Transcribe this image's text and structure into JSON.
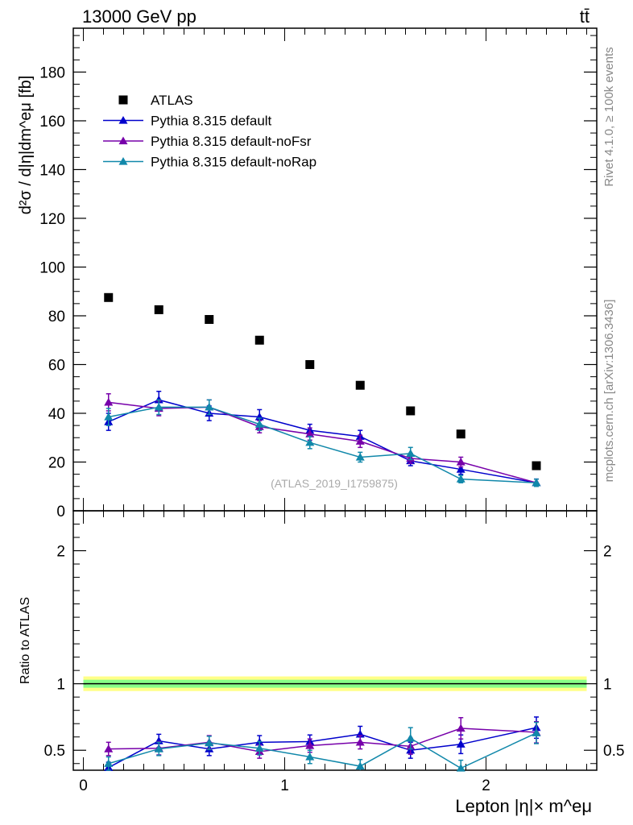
{
  "header": {
    "energy_label": "13000 GeV pp",
    "process_label": "tt̄"
  },
  "side_text": {
    "rivet": "Rivet 4.1.0, ≥ 100k events",
    "mcplots": "mcplots.cern.ch [arXiv:1306.3436]"
  },
  "analysis_label": "(ATLAS_2019_I1759875)",
  "colors": {
    "atlas": "#000000",
    "default": "#0000cc",
    "noFsr": "#7700aa",
    "noRap": "#1188aa",
    "band_outer": "#ffff88",
    "band_inner": "#88ff88"
  },
  "chart_data": [
    {
      "type": "scatter",
      "panel": "main",
      "ylabel": "d²σ / d|η|dm^eμ [fb]",
      "ylim": [
        0,
        198
      ],
      "xlim": [
        -0.05,
        2.55
      ],
      "yticks": [
        0,
        20,
        40,
        60,
        80,
        100,
        120,
        140,
        160,
        180
      ],
      "x": [
        0.125,
        0.375,
        0.625,
        0.875,
        1.125,
        1.375,
        1.625,
        1.875,
        2.25
      ],
      "series": [
        {
          "name": "ATLAS",
          "key": "atlas",
          "marker": "square",
          "values": [
            87.5,
            82.5,
            78.5,
            70.0,
            60.0,
            51.5,
            41.0,
            31.5,
            18.5
          ]
        },
        {
          "name": "Pythia 8.315 default",
          "key": "default",
          "marker": "triangle",
          "values": [
            36.5,
            45.5,
            40.0,
            38.5,
            33.0,
            30.5,
            20.5,
            17.0,
            11.5
          ],
          "errors": [
            3.5,
            3.5,
            3.0,
            3.0,
            2.5,
            2.5,
            2.0,
            2.0,
            1.5
          ]
        },
        {
          "name": "Pythia 8.315 default-noFsr",
          "key": "noFsr",
          "marker": "triangle",
          "values": [
            44.5,
            42.0,
            42.5,
            34.5,
            31.5,
            28.5,
            21.5,
            20.0,
            11.5
          ],
          "errors": [
            3.5,
            3.0,
            3.0,
            2.5,
            2.5,
            2.5,
            2.0,
            2.0,
            1.5
          ]
        },
        {
          "name": "Pythia 8.315 default-noRap",
          "key": "noRap",
          "marker": "triangle",
          "values": [
            38.5,
            42.5,
            42.5,
            35.5,
            28.0,
            22.0,
            23.5,
            13.0,
            11.5
          ],
          "errors": [
            3.5,
            3.0,
            3.0,
            2.5,
            2.5,
            2.0,
            2.5,
            1.5,
            1.5
          ]
        }
      ]
    },
    {
      "type": "line",
      "panel": "ratio",
      "ylabel": "Ratio to ATLAS",
      "xlabel": "Lepton |η|× m^eμ",
      "ylim": [
        0.35,
        2.3
      ],
      "xlim": [
        -0.05,
        2.55
      ],
      "yticks": [
        0.5,
        1,
        2
      ],
      "xticks": [
        0,
        1,
        2
      ],
      "x": [
        0.125,
        0.375,
        0.625,
        0.875,
        1.125,
        1.375,
        1.625,
        1.875,
        2.25
      ],
      "band": {
        "center": 1.0,
        "outer": 0.055,
        "inner": 0.03
      },
      "series": [
        {
          "name": "Pythia 8.315 default",
          "key": "default",
          "values": [
            0.37,
            0.57,
            0.51,
            0.56,
            0.565,
            0.62,
            0.5,
            0.545,
            0.67
          ],
          "errors": [
            0.04,
            0.05,
            0.05,
            0.05,
            0.05,
            0.06,
            0.06,
            0.07,
            0.08
          ]
        },
        {
          "name": "Pythia 8.315 default-noFsr",
          "key": "noFsr",
          "values": [
            0.51,
            0.515,
            0.56,
            0.49,
            0.535,
            0.56,
            0.53,
            0.665,
            0.635
          ],
          "errors": [
            0.05,
            0.05,
            0.05,
            0.05,
            0.05,
            0.05,
            0.06,
            0.08,
            0.08
          ]
        },
        {
          "name": "Pythia 8.315 default-noRap",
          "key": "noRap",
          "values": [
            0.4,
            0.51,
            0.555,
            0.515,
            0.45,
            0.38,
            0.59,
            0.365,
            0.63
          ],
          "errors": [
            0.05,
            0.05,
            0.05,
            0.05,
            0.05,
            0.05,
            0.08,
            0.06,
            0.08
          ]
        }
      ]
    }
  ]
}
